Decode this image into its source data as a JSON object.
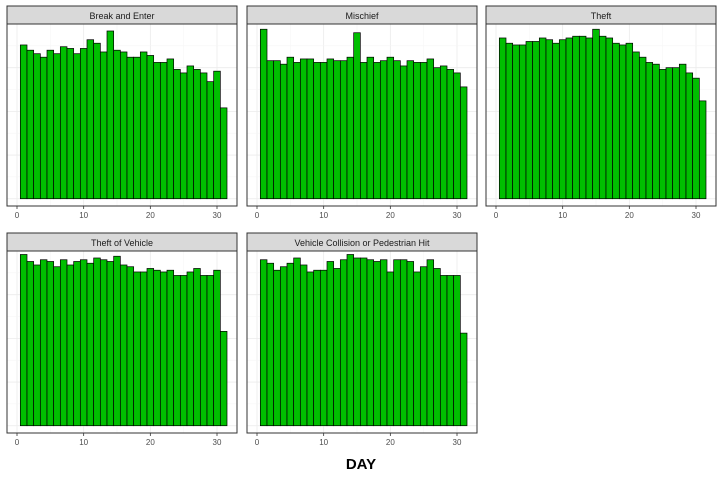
{
  "chart_data": {
    "type": "bar",
    "xlabel": "DAY",
    "ylabel": "",
    "xlim": [
      -1.5,
      33
    ],
    "x_ticks": [
      0,
      10,
      20,
      30
    ],
    "y_axis_ticks_shown": false,
    "grid": true,
    "bar_color": "#00bf00",
    "bar_edge_color": "#000000",
    "strip_fill": "#d9d9d9",
    "days": [
      1,
      2,
      3,
      4,
      5,
      6,
      7,
      8,
      9,
      10,
      11,
      12,
      13,
      14,
      15,
      16,
      17,
      18,
      19,
      20,
      21,
      22,
      23,
      24,
      25,
      26,
      27,
      28,
      29,
      30,
      31
    ],
    "facets": [
      {
        "title": "Break and Enter",
        "values": [
          0.88,
          0.85,
          0.83,
          0.81,
          0.85,
          0.83,
          0.87,
          0.86,
          0.83,
          0.86,
          0.91,
          0.89,
          0.84,
          0.96,
          0.85,
          0.84,
          0.81,
          0.81,
          0.84,
          0.82,
          0.78,
          0.78,
          0.8,
          0.74,
          0.72,
          0.76,
          0.74,
          0.72,
          0.67,
          0.73,
          0.52
        ]
      },
      {
        "title": "Mischief",
        "values": [
          0.97,
          0.79,
          0.79,
          0.77,
          0.81,
          0.78,
          0.8,
          0.8,
          0.78,
          0.78,
          0.8,
          0.79,
          0.79,
          0.81,
          0.95,
          0.78,
          0.81,
          0.78,
          0.79,
          0.81,
          0.79,
          0.76,
          0.79,
          0.78,
          0.78,
          0.8,
          0.75,
          0.76,
          0.74,
          0.72,
          0.64
        ]
      },
      {
        "title": "Theft",
        "values": [
          0.92,
          0.89,
          0.88,
          0.88,
          0.9,
          0.9,
          0.92,
          0.91,
          0.89,
          0.91,
          0.92,
          0.93,
          0.93,
          0.92,
          0.97,
          0.93,
          0.92,
          0.89,
          0.88,
          0.89,
          0.84,
          0.81,
          0.78,
          0.77,
          0.74,
          0.75,
          0.75,
          0.77,
          0.72,
          0.69,
          0.56
        ]
      },
      {
        "title": "Theft of Vehicle",
        "values": [
          0.98,
          0.94,
          0.92,
          0.95,
          0.94,
          0.91,
          0.95,
          0.92,
          0.94,
          0.95,
          0.93,
          0.96,
          0.95,
          0.94,
          0.97,
          0.92,
          0.91,
          0.88,
          0.88,
          0.9,
          0.89,
          0.88,
          0.89,
          0.86,
          0.86,
          0.88,
          0.9,
          0.86,
          0.86,
          0.89,
          0.54
        ]
      },
      {
        "title": "Vehicle Collision or Pedestrian Hit",
        "values": [
          0.95,
          0.93,
          0.89,
          0.91,
          0.93,
          0.96,
          0.92,
          0.88,
          0.89,
          0.89,
          0.94,
          0.9,
          0.95,
          0.98,
          0.96,
          0.96,
          0.95,
          0.94,
          0.95,
          0.88,
          0.95,
          0.95,
          0.94,
          0.88,
          0.91,
          0.95,
          0.9,
          0.86,
          0.86,
          0.86,
          0.53
        ]
      }
    ]
  }
}
